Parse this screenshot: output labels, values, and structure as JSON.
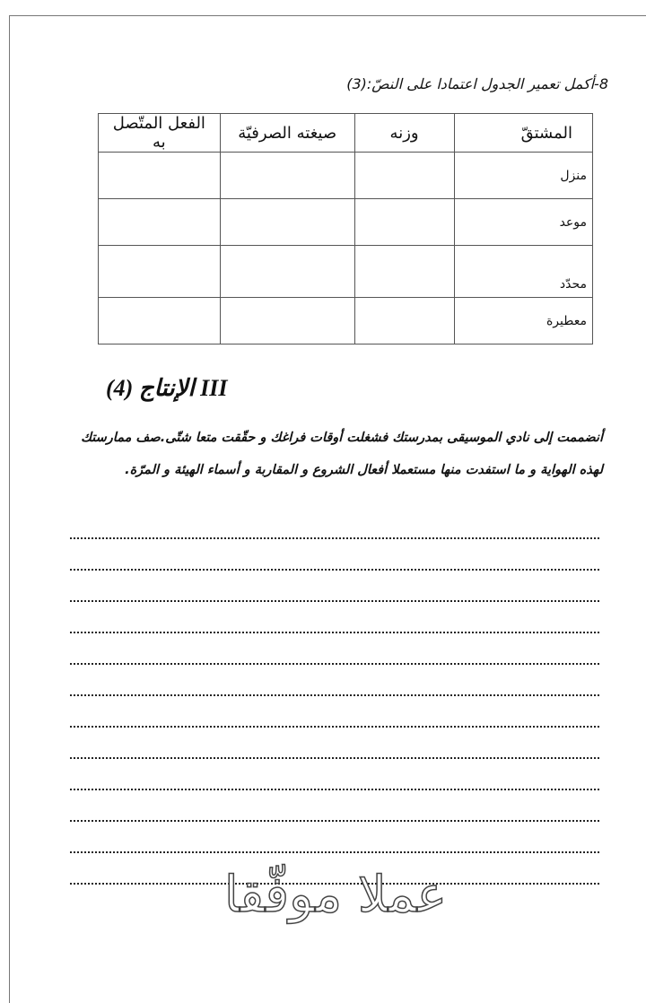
{
  "question": {
    "title": "8-أكمل تعمير الجدول اعتمادا على النصّ:(3)"
  },
  "table": {
    "headers": [
      "المشتقّ",
      "وزنه",
      "صيغته الصرفيّة",
      "الفعل المتّصل به"
    ],
    "rows": [
      "منزل",
      "موعد",
      "محدّد",
      "معطيرة"
    ]
  },
  "section": {
    "title": "III الإنتاج  (4)"
  },
  "prompt": {
    "text": "أنضممت إلى نادي الموسيقى  بمدرستك فشغلت أوقات فراغك و حقّقت متعا شتّى.صف ممارستك لهذه الهواية و ما استفدت  منها مستعملا أفعال الشروع و المقاربة و أسماء الهيئة و المرّة."
  },
  "answer_lines_count": 12,
  "watermark": "عملا موفّقا"
}
